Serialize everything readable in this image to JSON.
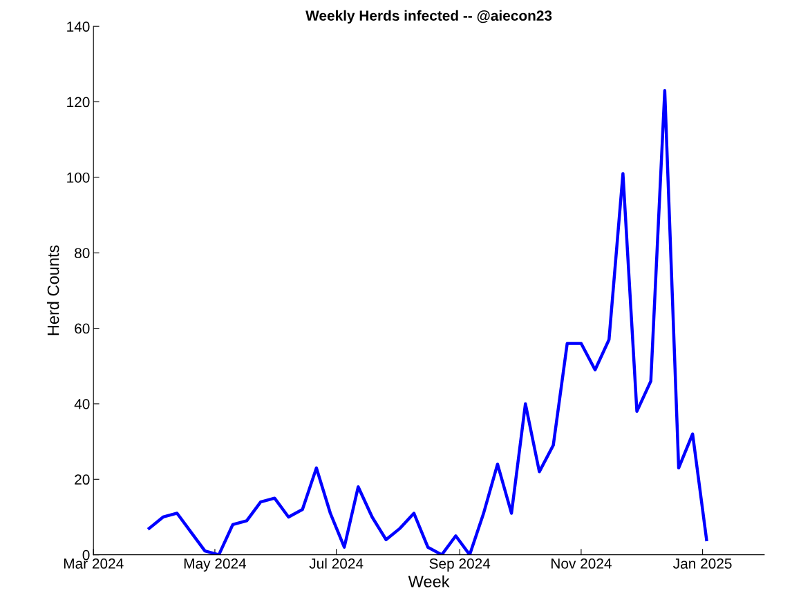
{
  "chart_data": {
    "type": "line",
    "title": "Weekly Herds infected -- @aiecon23",
    "xlabel": "Week",
    "ylabel": "Herd Counts",
    "x": [
      "2024-03-29",
      "2024-04-05",
      "2024-04-12",
      "2024-04-19",
      "2024-04-26",
      "2024-05-03",
      "2024-05-10",
      "2024-05-17",
      "2024-05-24",
      "2024-05-31",
      "2024-06-07",
      "2024-06-14",
      "2024-06-21",
      "2024-06-28",
      "2024-07-05",
      "2024-07-12",
      "2024-07-19",
      "2024-07-26",
      "2024-08-02",
      "2024-08-09",
      "2024-08-16",
      "2024-08-23",
      "2024-08-30",
      "2024-09-06",
      "2024-09-13",
      "2024-09-20",
      "2024-09-27",
      "2024-10-04",
      "2024-10-11",
      "2024-10-18",
      "2024-10-25",
      "2024-11-01",
      "2024-11-08",
      "2024-11-15",
      "2024-11-22",
      "2024-11-29",
      "2024-12-06",
      "2024-12-13",
      "2024-12-20",
      "2024-12-27",
      "2025-01-03"
    ],
    "series": [
      {
        "color": "#0000ff",
        "values": [
          7,
          10,
          11,
          6,
          1,
          0,
          8,
          9,
          14,
          15,
          10,
          12,
          23,
          11,
          2,
          18,
          10,
          4,
          7,
          11,
          2,
          0,
          5,
          0,
          11,
          24,
          11,
          40,
          22,
          29,
          56,
          56,
          49,
          57,
          101,
          38,
          46,
          123,
          23,
          32,
          4
        ]
      }
    ],
    "xlim": [
      "2024-03-01",
      "2025-02-01"
    ],
    "xticks": [
      {
        "value": "2024-03-01",
        "label": "Mar 2024"
      },
      {
        "value": "2024-05-01",
        "label": "May 2024"
      },
      {
        "value": "2024-07-01",
        "label": "Jul 2024"
      },
      {
        "value": "2024-09-01",
        "label": "Sep 2024"
      },
      {
        "value": "2024-11-01",
        "label": "Nov 2024"
      },
      {
        "value": "2025-01-01",
        "label": "Jan 2025"
      }
    ],
    "ylim": [
      0,
      140
    ],
    "yticks": [
      0,
      20,
      40,
      60,
      80,
      100,
      120,
      140
    ],
    "grid": false,
    "legend": false,
    "marker": "none",
    "line_style": "solid"
  }
}
